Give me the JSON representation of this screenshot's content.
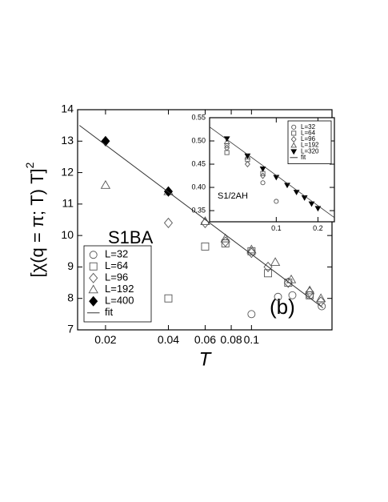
{
  "chart_data": [
    {
      "type": "scatter",
      "xscale": "log",
      "xlabel": "T",
      "ylabel": "[χ(q = π; T)  T]",
      "ylabel_exponent": "2",
      "annotations": [
        "S1BA",
        "(b)"
      ],
      "legend": "lower left",
      "xlim": [
        0.0147,
        0.243
      ],
      "xticks": [
        0.02,
        0.04,
        0.06,
        0.08,
        0.1
      ],
      "ylim": [
        7,
        14
      ],
      "yticks": [
        7,
        8,
        9,
        10,
        11,
        12,
        13,
        14
      ],
      "series": [
        {
          "name": "L=32",
          "marker": "circle",
          "color": "#555555",
          "x": [
            0.1,
            0.134,
            0.157,
            0.19,
            0.217
          ],
          "values": [
            7.5,
            8.05,
            8.1,
            8.1,
            7.75
          ]
        },
        {
          "name": "L=64",
          "marker": "square",
          "color": "#555555",
          "x": [
            0.04,
            0.06,
            0.075,
            0.1,
            0.12,
            0.15,
            0.19
          ],
          "values": [
            8.0,
            9.65,
            9.75,
            9.5,
            8.8,
            8.5,
            8.1
          ]
        },
        {
          "name": "L=96",
          "marker": "diamond",
          "color": "#555555",
          "x": [
            0.04,
            0.06,
            0.075,
            0.1,
            0.12,
            0.15,
            0.19,
            0.215
          ],
          "values": [
            10.4,
            10.4,
            9.8,
            9.45,
            9.0,
            8.5,
            8.2,
            7.9
          ]
        },
        {
          "name": "L=192",
          "marker": "triangle",
          "color": "#555555",
          "x": [
            0.02,
            0.04,
            0.06,
            0.075,
            0.1,
            0.13,
            0.155,
            0.19,
            0.215
          ],
          "values": [
            11.6,
            11.4,
            10.45,
            9.9,
            9.55,
            9.15,
            8.6,
            8.25,
            8.0
          ]
        },
        {
          "name": "L=400",
          "marker": "diamond-filled",
          "color": "#000000",
          "x": [
            0.02,
            0.04
          ],
          "values": [
            13.0,
            11.4
          ]
        },
        {
          "name": "fit",
          "marker": "line",
          "color": "#333333",
          "x": [
            0.015,
            0.22
          ],
          "values": [
            13.5,
            7.7
          ]
        }
      ]
    },
    {
      "type": "scatter",
      "xscale": "log",
      "annotations": [
        "S1/2AH"
      ],
      "legend": "upper right",
      "xlim": [
        0.033,
        0.263
      ],
      "xticks": [
        0.1,
        0.2
      ],
      "ylim": [
        0.326,
        0.55
      ],
      "yticks": [
        0.35,
        {
          "value": 0.4,
          "label": "0.40"
        },
        0.45,
        {
          "value": 0.5,
          "label": "0.50"
        },
        0.55
      ],
      "series": [
        {
          "name": "L=32",
          "marker": "circle",
          "color": "#555555",
          "x": [
            0.044,
            0.08,
            0.1
          ],
          "values": [
            0.49,
            0.41,
            0.37
          ]
        },
        {
          "name": "L=64",
          "marker": "square",
          "color": "#555555",
          "x": [
            0.044,
            0.062,
            0.08
          ],
          "values": [
            0.475,
            0.46,
            0.43
          ]
        },
        {
          "name": "L=96",
          "marker": "diamond",
          "color": "#555555",
          "x": [
            0.044,
            0.062,
            0.08
          ],
          "values": [
            0.485,
            0.45,
            0.425
          ]
        },
        {
          "name": "L=192",
          "marker": "triangle",
          "color": "#555555",
          "x": [
            0.044,
            0.062
          ],
          "values": [
            0.498,
            0.465
          ]
        },
        {
          "name": "L=320",
          "marker": "triangle-down-filled",
          "color": "#000000",
          "x": [
            0.044,
            0.062,
            0.08,
            0.1,
            0.12,
            0.14,
            0.16,
            0.18,
            0.2
          ],
          "values": [
            0.505,
            0.468,
            0.44,
            0.422,
            0.405,
            0.39,
            0.378,
            0.365,
            0.355
          ]
        },
        {
          "name": "fit",
          "marker": "line",
          "color": "#333333",
          "x": [
            0.033,
            0.263
          ],
          "values": [
            0.53,
            0.335
          ]
        }
      ]
    }
  ]
}
